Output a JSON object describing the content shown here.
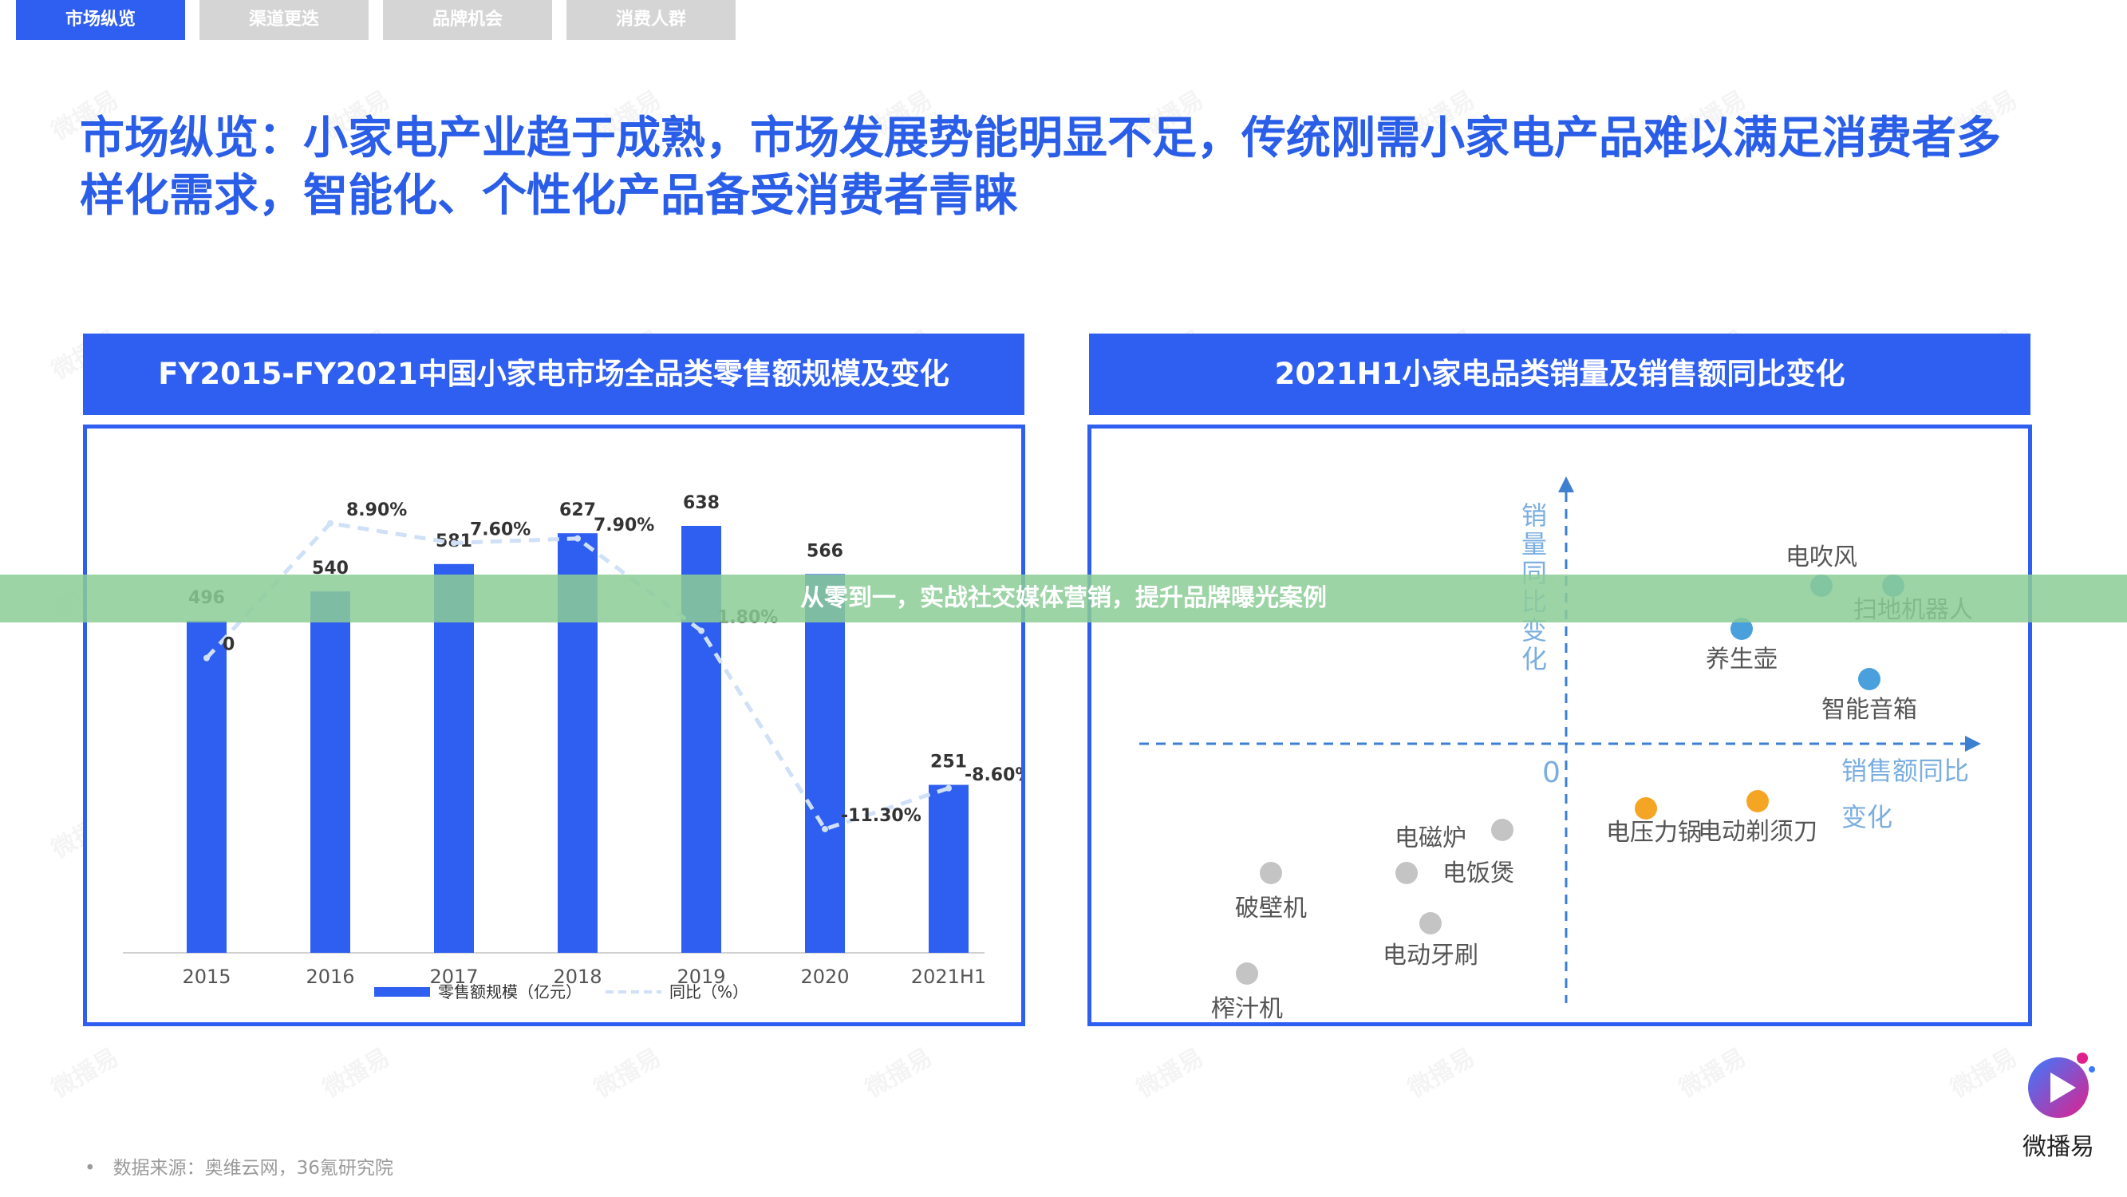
{
  "tabs": [
    "市场纵览",
    "渠道更迭",
    "品牌机会",
    "消费人群"
  ],
  "headline": "市场纵览：小家电产业趋于成熟，市场发展势能明显不足，传统刚需小家电产品难以满足消费者多样化需求，智能化、个性化产品备受消费者青睐",
  "left_panel_title": "FY2015-FY2021中国小家电市场全品类零售额规模及变化",
  "right_panel_title": "2021H1小家电品类销量及销售额同比变化",
  "banner": "从零到一，实战社交媒体营销，提升品牌曝光案例",
  "footnote": "数据来源：奥维云网，36氪研究院",
  "footnote_bullet": "•",
  "brand": {
    "name": "微播易"
  },
  "watermark_text": "微播易",
  "colors": {
    "accent": "#2f5ff0",
    "headline": "#2a5ee8",
    "dot_blue": "#4aa0dc",
    "dot_orange": "#f5a524",
    "dot_gray": "#c4c4c4",
    "quad_axis": "#3d7fd0",
    "banner": "#8ccd96"
  },
  "chart_data": [
    {
      "type": "bar",
      "categories": [
        "2015",
        "2016",
        "2017",
        "2018",
        "2019",
        "2020",
        "2021H1"
      ],
      "series": [
        {
          "name": "零售额规模（亿元）",
          "values": [
            496,
            540,
            581,
            627,
            638,
            566,
            251
          ]
        },
        {
          "name": "同比（%）",
          "type": "line",
          "values": [
            null,
            8.9,
            7.6,
            7.9,
            1.8,
            -11.3,
            -8.6
          ]
        }
      ],
      "bar_labels": [
        "496",
        "540",
        "581",
        "627",
        "638",
        "566",
        "251"
      ],
      "line_labels": [
        "0",
        "8.90%",
        "7.60%",
        "7.90%",
        "1.80%",
        "-11.30%",
        "-8.60%"
      ],
      "ylim": [
        0,
        700
      ],
      "y2lim": [
        -20,
        12
      ],
      "legend": "bottom"
    },
    {
      "type": "scatter",
      "xlabel": "销售额同比变化",
      "ylabel": "销量同比变化",
      "origin_label": "0",
      "points": [
        {
          "label": "电吹风",
          "x": 3.2,
          "y": 2.2,
          "color": "blue"
        },
        {
          "label": "扫地机器人",
          "x": 4.1,
          "y": 2.2,
          "color": "blue"
        },
        {
          "label": "养生壶",
          "x": 2.2,
          "y": 1.6,
          "color": "blue"
        },
        {
          "label": "智能音箱",
          "x": 3.8,
          "y": 0.9,
          "color": "blue"
        },
        {
          "label": "电压力锅",
          "x": 1.0,
          "y": -0.9,
          "color": "orange"
        },
        {
          "label": "电动剃须刀",
          "x": 2.4,
          "y": -0.8,
          "color": "orange"
        },
        {
          "label": "电磁炉",
          "x": -0.8,
          "y": -1.2,
          "color": "gray"
        },
        {
          "label": "电饭煲",
          "x": -2.0,
          "y": -1.8,
          "color": "gray"
        },
        {
          "label": "破壁机",
          "x": -3.7,
          "y": -1.8,
          "color": "gray"
        },
        {
          "label": "电动牙刷",
          "x": -1.7,
          "y": -2.5,
          "color": "gray"
        },
        {
          "label": "榨汁机",
          "x": -4.0,
          "y": -3.2,
          "color": "gray"
        }
      ],
      "xlim": [
        -5,
        5
      ],
      "ylim": [
        -4,
        4
      ],
      "grid": false
    }
  ]
}
